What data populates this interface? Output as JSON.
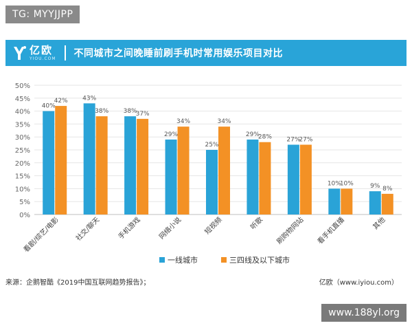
{
  "overlay_tag": "TG: MYYJJPP",
  "banner": {
    "logo_cn": "亿欧",
    "logo_en": "YIOU.COM",
    "title": "不同城市之间晚睡前刷手机时常用娱乐项目对比"
  },
  "footer": {
    "source": "来源：企鹅智酷《2019中国互联网趋势报告》；",
    "brand": "亿欧（www.iyiou.com）"
  },
  "watermark": "www.188yl.org",
  "colors": {
    "series1": "#2aa3d7",
    "series2": "#f39125",
    "banner": "#29a4d8"
  },
  "chart_data": {
    "type": "bar",
    "categories": [
      "看剧/综艺/电影",
      "社交/聊天",
      "手机游戏",
      "网络小说",
      "短视频",
      "听歌",
      "刷购物网站",
      "看手机直播",
      "其他"
    ],
    "series": [
      {
        "name": "一线城市",
        "values": [
          40,
          43,
          38,
          29,
          25,
          29,
          27,
          10,
          9
        ]
      },
      {
        "name": "三四线及以下城市",
        "values": [
          42,
          38,
          37,
          34,
          34,
          28,
          27,
          10,
          8
        ]
      }
    ],
    "ylim": [
      0,
      50
    ],
    "yticks": [
      "0%",
      "5%",
      "10%",
      "15%",
      "20%",
      "25%",
      "30%",
      "35%",
      "40%",
      "45%",
      "50%"
    ],
    "data_labels": true,
    "legend_position": "bottom",
    "grid": true
  }
}
